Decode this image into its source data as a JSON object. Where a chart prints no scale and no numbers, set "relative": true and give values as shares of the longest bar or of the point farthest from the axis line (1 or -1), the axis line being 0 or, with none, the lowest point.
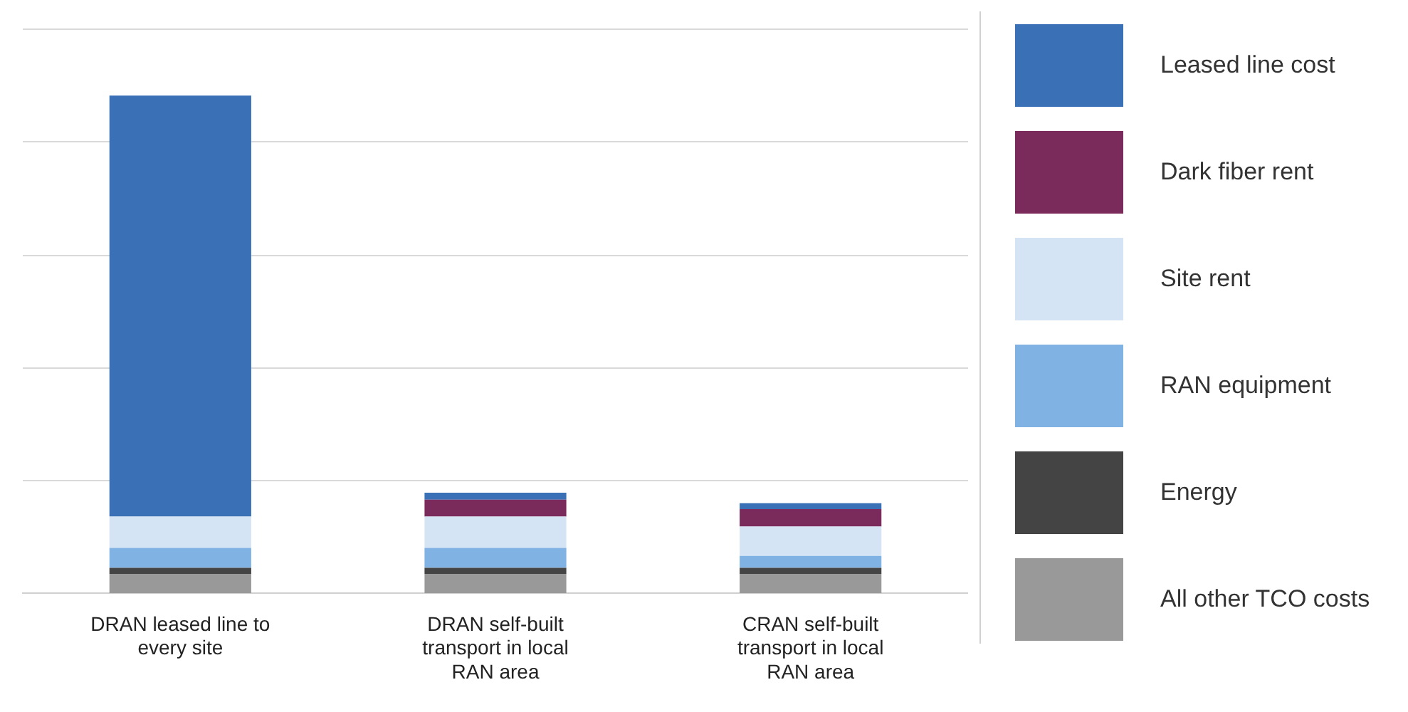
{
  "chart_data": {
    "type": "bar",
    "stacked": true,
    "relative": true,
    "grid": "y",
    "legend": "right",
    "categories": [
      "DRAN leased line to every site",
      "DRAN self-built transport in local RAN area",
      "CRAN self-built transport in local RAN area"
    ],
    "series": [
      {
        "name": "All other TCO costs",
        "color": "#999999",
        "values": [
          0.039,
          0.039,
          0.039
        ]
      },
      {
        "name": "Energy",
        "color": "#444444",
        "values": [
          0.012,
          0.012,
          0.012
        ]
      },
      {
        "name": "RAN equipment",
        "color": "#80b3e3",
        "values": [
          0.04,
          0.04,
          0.024
        ]
      },
      {
        "name": "Site rent",
        "color": "#d5e4f4",
        "values": [
          0.063,
          0.063,
          0.059
        ]
      },
      {
        "name": "Dark fiber rent",
        "color": "#7b2a5c",
        "values": [
          0,
          0.034,
          0.035
        ]
      },
      {
        "name": "Leased line cost",
        "color": "#3a70b6",
        "values": [
          0.846,
          0.014,
          0.012
        ]
      }
    ]
  }
}
